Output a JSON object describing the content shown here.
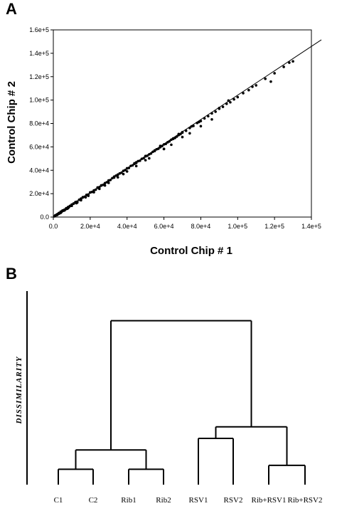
{
  "panels": {
    "a_label": "A",
    "b_label": "B"
  },
  "chart_data": [
    {
      "type": "scatter",
      "title": "",
      "xlabel": "Control Chip # 1",
      "ylabel": "Control Chip # 2",
      "xlim": [
        0,
        140000
      ],
      "ylim": [
        0,
        160000
      ],
      "xticks": [
        0,
        20000,
        40000,
        60000,
        80000,
        100000,
        120000,
        140000
      ],
      "xtick_labels": [
        "0.0",
        "2.0e+4",
        "4.0e+4",
        "6.0e+4",
        "8.0e+4",
        "1.0e+5",
        "1.2e+5",
        "1.4e+5"
      ],
      "yticks": [
        0,
        20000,
        40000,
        60000,
        80000,
        100000,
        120000,
        140000,
        160000
      ],
      "ytick_labels": [
        "0.0",
        "2.0e+4",
        "4.0e+4",
        "6.0e+4",
        "8.0e+4",
        "1.0e+5",
        "1.2e+5",
        "1.4e+5",
        "1.6e+5"
      ],
      "grid": false,
      "fit_line": {
        "x": [
          0,
          140000
        ],
        "y": [
          0,
          143000
        ]
      },
      "points": {
        "x": [
          500,
          1000,
          1500,
          2000,
          2500,
          3000,
          3500,
          4000,
          4500,
          5000,
          5500,
          6000,
          6500,
          7000,
          7500,
          8000,
          8500,
          9000,
          9500,
          10000,
          11000,
          12000,
          13000,
          14000,
          15000,
          16000,
          17000,
          18000,
          19000,
          20000,
          21000,
          22000,
          23000,
          24000,
          25000,
          26000,
          27000,
          28000,
          29000,
          30000,
          31000,
          32000,
          33000,
          34000,
          35000,
          36000,
          37000,
          38000,
          39000,
          40000,
          41000,
          42000,
          43000,
          44000,
          45000,
          46000,
          47000,
          48000,
          49000,
          50000,
          51000,
          52000,
          53000,
          54000,
          55000,
          56000,
          57000,
          58000,
          59000,
          60000,
          61000,
          62000,
          63000,
          64000,
          65000,
          66000,
          67000,
          68000,
          69000,
          70000,
          72000,
          74000,
          76000,
          78000,
          80000,
          82000,
          84000,
          86000,
          88000,
          90000,
          92000,
          94000,
          96000,
          98000,
          100000,
          103000,
          106000,
          110000,
          115000,
          120000,
          125000,
          130000,
          2000,
          3000,
          4000,
          6000,
          8000,
          10000,
          12000,
          15000,
          18000,
          22000,
          26000,
          30000,
          35000,
          40000,
          45000,
          50000,
          55000,
          60000,
          65000,
          70000,
          75000,
          2500,
          5000,
          7500,
          10000,
          12500,
          15000,
          17500,
          20000,
          25000,
          30000,
          35000,
          40000,
          45000,
          50000,
          60000,
          70000,
          80000,
          90000,
          1000,
          2000,
          3000,
          4000,
          5000,
          6000,
          7000,
          8000,
          9000,
          11000,
          13000,
          16000,
          19000,
          24000,
          28000,
          33000,
          38000,
          44000,
          52000,
          58000,
          64000,
          68000,
          74000,
          79000,
          86000,
          95000,
          108000,
          118000,
          128000
        ],
        "y": [
          600,
          900,
          1700,
          2100,
          2400,
          3200,
          3300,
          4200,
          4400,
          5300,
          5400,
          6300,
          6400,
          7400,
          7500,
          8400,
          8500,
          9500,
          9600,
          10500,
          11400,
          12600,
          13200,
          14800,
          15200,
          16700,
          17400,
          18900,
          19300,
          21000,
          21500,
          22800,
          23400,
          25000,
          25600,
          26900,
          27500,
          29000,
          29800,
          31200,
          31700,
          33300,
          33800,
          35400,
          36100,
          37300,
          37900,
          39500,
          40200,
          41600,
          42000,
          43700,
          44200,
          45500,
          46300,
          47800,
          48200,
          49800,
          50300,
          51900,
          52400,
          53600,
          54300,
          55800,
          56500,
          57900,
          58400,
          59700,
          60700,
          62100,
          62500,
          63900,
          64700,
          66100,
          66800,
          67600,
          68800,
          70100,
          70900,
          72200,
          73800,
          76100,
          77900,
          80400,
          82100,
          84300,
          86200,
          88600,
          90100,
          92600,
          94200,
          96800,
          98100,
          100600,
          102500,
          105900,
          108500,
          112600,
          118200,
          122900,
          128400,
          133100,
          2300,
          2800,
          4600,
          5700,
          8600,
          9600,
          12800,
          14400,
          18900,
          21200,
          27100,
          29200,
          36300,
          39000,
          46800,
          48600,
          57000,
          58300,
          67200,
          68400,
          77500,
          2600,
          5600,
          7100,
          10700,
          11900,
          15800,
          16900,
          21100,
          24100,
          31300,
          34000,
          41700,
          43600,
          52200,
          58100,
          72600,
          77700,
          93200,
          1400,
          1700,
          3500,
          3600,
          5500,
          5700,
          7600,
          7600,
          9500,
          11600,
          12400,
          17000,
          18200,
          25300,
          27000,
          34600,
          36700,
          46000,
          50200,
          60800,
          61800,
          71000,
          71600,
          81200,
          83500,
          99600,
          111400,
          115800,
          132000
        ]
      }
    },
    {
      "type": "dendrogram",
      "ylabel": "DISSIMILARITY",
      "leaves": [
        "C1",
        "C2",
        "Rib1",
        "Rib2",
        "RSV1",
        "RSV2",
        "Rib+RSV1",
        "Rib+RSV2"
      ],
      "merges": [
        {
          "left": "C1",
          "right": "C2",
          "height": 0.08
        },
        {
          "left": "Rib1",
          "right": "Rib2",
          "height": 0.08
        },
        {
          "left": "C1+C2",
          "right": "Rib1+Rib2",
          "height": 0.18
        },
        {
          "left": "Rib+RSV1",
          "right": "Rib+RSV2",
          "height": 0.1
        },
        {
          "left": "RSV1",
          "right": "RSV2",
          "height": 0.24
        },
        {
          "left": "RSV1+RSV2",
          "right": "Rib+RSV",
          "height": 0.3
        },
        {
          "left": "C+Rib",
          "right": "RSV+RibRSV",
          "height": 0.85
        }
      ],
      "ymax": 1.0
    }
  ]
}
